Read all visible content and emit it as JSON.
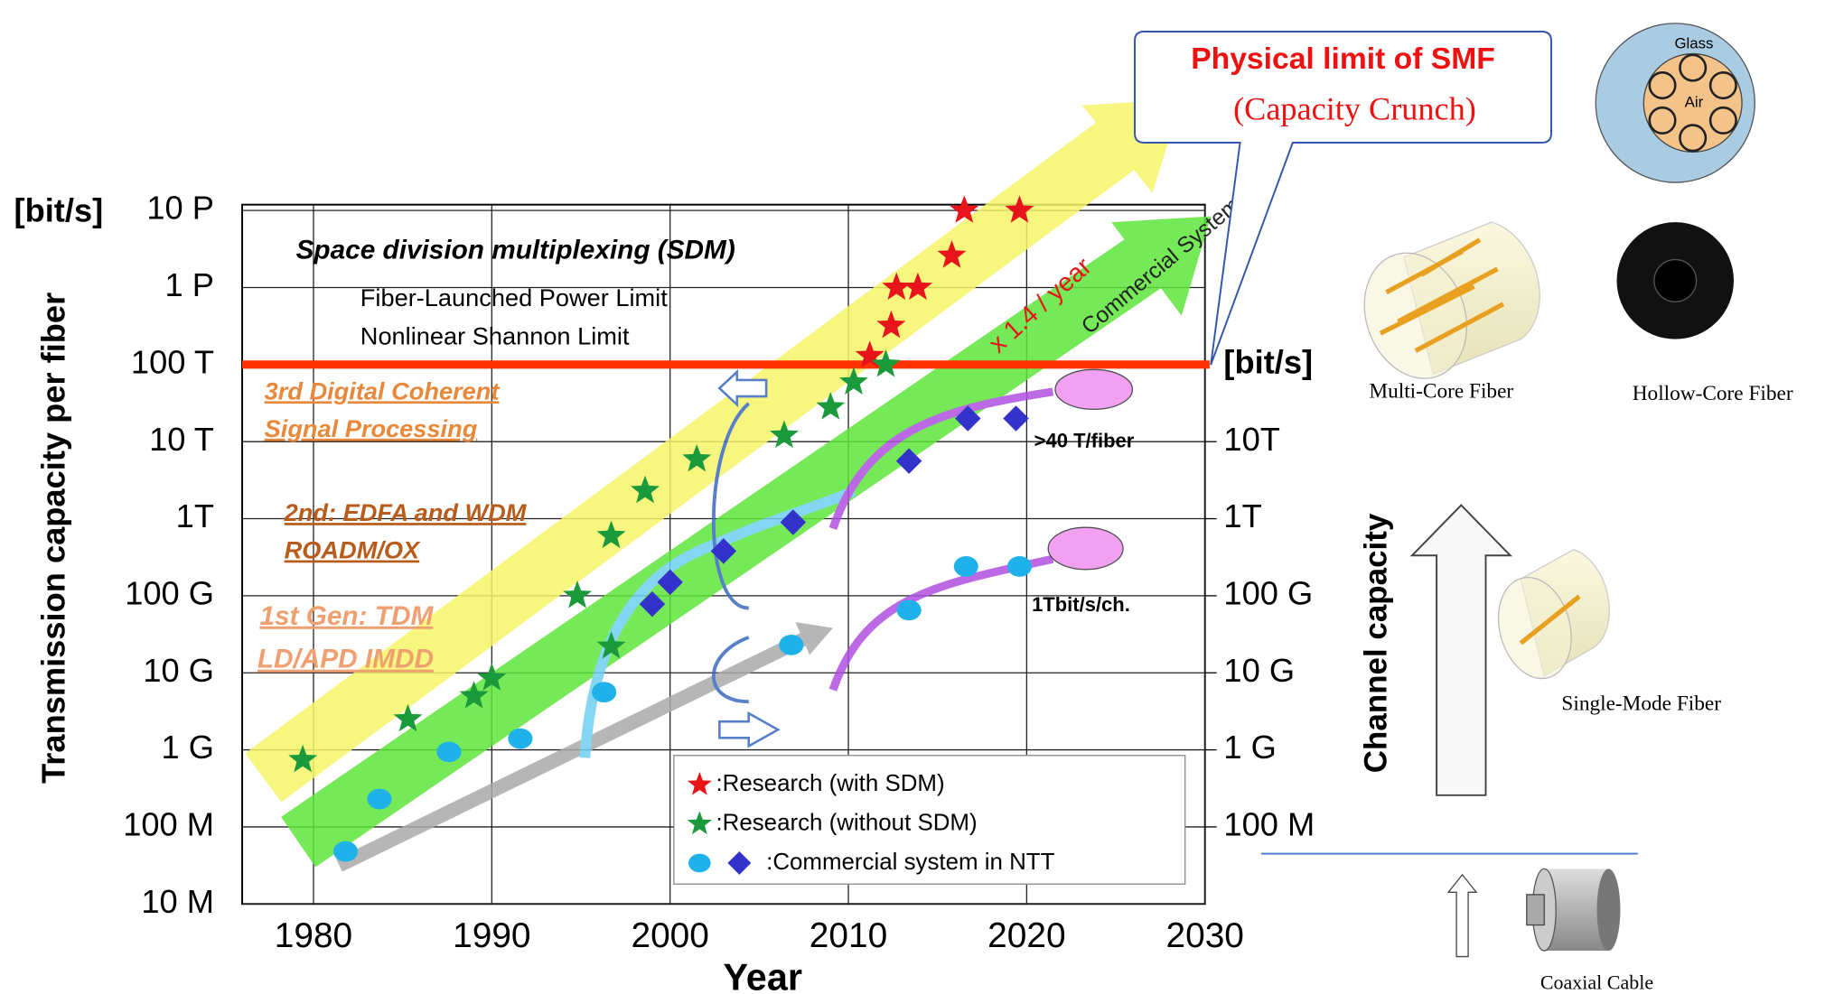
{
  "chart_data": {
    "type": "scatter",
    "x_label": "Year",
    "y_label": "Transmission capacity per fiber",
    "y_unit": "[bit/s]",
    "y2_unit": "[bit/s]",
    "log_y": true,
    "grid": true,
    "xlim": [
      1976,
      2030
    ],
    "xticks": [
      1980,
      1990,
      2000,
      2010,
      2020,
      2030
    ],
    "ylim": [
      10000000,
      10000000000000000
    ],
    "yticks": [
      {
        "value": 10000000000000000,
        "label": "10 P"
      },
      {
        "value": 1000000000000000,
        "label": "1 P"
      },
      {
        "value": 100000000000000,
        "label": "100 T"
      },
      {
        "value": 10000000000000,
        "label": "10 T"
      },
      {
        "value": 1000000000000,
        "label": "1T"
      },
      {
        "value": 100000000000,
        "label": "100 G"
      },
      {
        "value": 10000000000,
        "label": "10 G"
      },
      {
        "value": 1000000000,
        "label": "1 G"
      },
      {
        "value": 100000000,
        "label": "100 M"
      },
      {
        "value": 10000000,
        "label": "10 M"
      }
    ],
    "y2lim": [
      10000000,
      10000000000000000
    ],
    "y2ticks": [
      {
        "value": 10000000000000,
        "label": "10T"
      },
      {
        "value": 1000000000000,
        "label": "1T"
      },
      {
        "value": 100000000000,
        "label": "100 G"
      },
      {
        "value": 10000000000,
        "label": "10 G"
      },
      {
        "value": 1000000000,
        "label": "1 G"
      },
      {
        "value": 100000000,
        "label": "100 M"
      }
    ],
    "hline": {
      "value": 100000000000000,
      "color": "#ff3300"
    },
    "series": [
      {
        "name": ":Research (with SDM)",
        "marker": "star",
        "color": "#e8141b",
        "x": [
          2016.5,
          2019.6,
          2015.8,
          2012.7,
          2013.9,
          2012.4,
          2011.2
        ],
        "values": [
          10000000000000000,
          10000000000000000,
          2600000000000000,
          1000000000000000,
          1000000000000000,
          320000000000000,
          130000000000000
        ]
      },
      {
        "name": ":Research (without SDM)",
        "marker": "star",
        "color": "#1a9a3a",
        "x": [
          1979.4,
          1985.3,
          1989.0,
          1990.0,
          1994.8,
          1996.7,
          1996.7,
          1998.6,
          2001.5,
          2006.4,
          2009.0,
          2010.3,
          2012.1
        ],
        "values": [
          740000000,
          2500000000,
          5000000000,
          8500000000,
          100000000000,
          22000000000,
          600000000000,
          2300000000000,
          5900000000000,
          12000000000000,
          28000000000000,
          59000000000000,
          100000000000000
        ]
      },
      {
        "name": ":Commercial  system in NTT",
        "marker": "circle",
        "color": "#1fb2ea",
        "x": [
          1981.8,
          1983.7,
          1987.6,
          1991.6,
          1996.3,
          2006.8,
          2013.4,
          2016.6,
          2019.6
        ],
        "values": [
          48000000,
          230000000,
          940000000,
          1400000000,
          5600000000,
          23000000000,
          65000000000,
          240000000000,
          240000000000
        ]
      },
      {
        "marker": "diamond",
        "color": "#3333cc",
        "x": [
          1999.0,
          2000.0,
          2003.0,
          2006.9,
          2013.4,
          2016.7,
          2019.4
        ],
        "values": [
          78000000000,
          150000000000,
          380000000000,
          900000000000,
          5600000000000,
          20000000000000,
          20000000000000
        ]
      }
    ],
    "annotations": [
      "Space division multiplexing  (SDM)",
      "Fiber-Launched Power Limit",
      "Nonlinear Shannon Limit",
      "3rd Digital Coherent",
      "Signal Processing",
      "2nd:  EDFA  and WDM",
      "ROADM/OX",
      "1st  Gen: TDM",
      "LD/APD IMDD",
      "x 1.4 / year",
      "Commercial System",
      ">40 T/fiber",
      "1Tbit/s/ch.",
      "Physical limit of SMF",
      "(Capacity Crunch)",
      "Glass",
      "Air",
      "Multi-Core Fiber",
      "Hollow-Core Fiber",
      "Channel capacity",
      "Single-Mode Fiber",
      "Coaxial Cable"
    ]
  }
}
